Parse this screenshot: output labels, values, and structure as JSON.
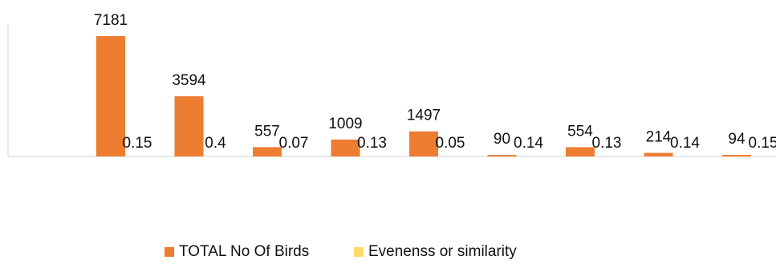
{
  "chart_data": {
    "type": "bar",
    "categories": [
      "",
      "",
      "",
      "",
      "",
      "",
      "",
      "",
      ""
    ],
    "series": [
      {
        "name": "TOTAL No Of Birds",
        "color": "#ED7D31",
        "values": [
          7181,
          3594,
          557,
          1009,
          1497,
          90,
          554,
          214,
          94
        ],
        "labels": [
          "7181",
          "3594",
          "557",
          "1009",
          "1497",
          "90",
          "554",
          "214",
          "94"
        ]
      },
      {
        "name": "Evenenss or similarity",
        "color": "#FFD966",
        "values": [
          0.15,
          0.4,
          0.07,
          0.13,
          0.05,
          0.14,
          0.13,
          0.14,
          0.15
        ],
        "labels": [
          "0.15",
          "0.4",
          "0.07",
          "0.13",
          "0.05",
          "0.14",
          "0.13",
          "0.14",
          "0.15"
        ]
      }
    ],
    "ylim": [
      0,
      7500
    ],
    "grid": false,
    "legend": "bottom"
  }
}
